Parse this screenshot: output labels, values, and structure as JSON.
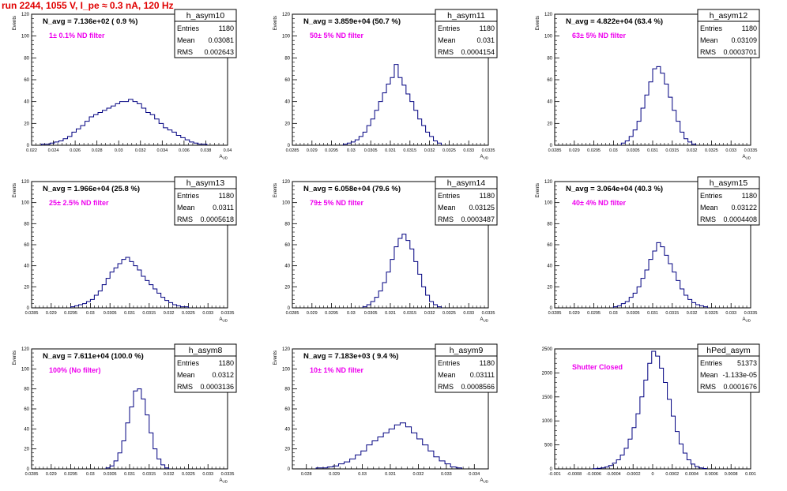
{
  "run_title": "run 2244,  1055 V, I_pe ≈ 0.3 nA, 120 Hz",
  "colors": {
    "title": "#e00000",
    "histogram": "#000080",
    "label": "#ee00ee",
    "text": "#000000"
  },
  "stat_labels": {
    "entries": "Entries",
    "mean": "Mean",
    "rms": "RMS"
  },
  "chart_data": [
    {
      "type": "bar",
      "name": "h_asym10",
      "ylabel": "Events",
      "xlabel": "A_UD",
      "xlim": [
        0.022,
        0.04
      ],
      "ylim": [
        0,
        120
      ],
      "xticks": [
        "0.022",
        "0.024",
        "0.026",
        "0.028",
        "0.03",
        "0.032",
        "0.034",
        "0.036",
        "0.038",
        "0.04"
      ],
      "yticks": [
        "0",
        "20",
        "40",
        "60",
        "80",
        "100",
        "120"
      ],
      "navg": "N_avg = 7.136e+02 ( 0.9 %)",
      "filter": "1± 0.1% ND filter",
      "stats": {
        "entries": "1180",
        "mean": "0.03081",
        "rms": "0.002643"
      },
      "x": [
        0.0231,
        0.0235,
        0.0239,
        0.0243,
        0.0247,
        0.0251,
        0.0255,
        0.0259,
        0.0263,
        0.0267,
        0.0271,
        0.0275,
        0.0279,
        0.0283,
        0.0287,
        0.0291,
        0.0295,
        0.0299,
        0.0303,
        0.0307,
        0.0311,
        0.0315,
        0.0319,
        0.0323,
        0.0327,
        0.0331,
        0.0335,
        0.0339,
        0.0343,
        0.0347,
        0.0351,
        0.0355,
        0.0359,
        0.0363,
        0.0367,
        0.0371,
        0.0375,
        0.0379
      ],
      "values": [
        1,
        1,
        2,
        3,
        4,
        6,
        8,
        12,
        15,
        18,
        22,
        26,
        28,
        30,
        32,
        34,
        36,
        38,
        40,
        40,
        42,
        40,
        38,
        34,
        30,
        28,
        24,
        20,
        16,
        14,
        12,
        9,
        7,
        5,
        3,
        2,
        1,
        1
      ]
    },
    {
      "type": "bar",
      "name": "h_asym11",
      "ylabel": "Events",
      "xlabel": "A_UD",
      "xlim": [
        0.0285,
        0.0335
      ],
      "ylim": [
        0,
        120
      ],
      "xticks": [
        "0.0285",
        "0.029",
        "0.0295",
        "0.03",
        "0.0305",
        "0.031",
        "0.0315",
        "0.032",
        "0.0325",
        "0.033",
        "0.0335"
      ],
      "yticks": [
        "0",
        "20",
        "40",
        "60",
        "80",
        "100",
        "120"
      ],
      "navg": "N_avg = 3.859e+04 (50.7 %)",
      "filter": "50± 5% ND filter",
      "stats": {
        "entries": "1180",
        "mean": "0.031",
        "rms": "0.0004154"
      },
      "x": [
        0.02985,
        0.02995,
        0.03005,
        0.03015,
        0.03025,
        0.03035,
        0.03045,
        0.03055,
        0.03065,
        0.03075,
        0.03085,
        0.03095,
        0.03105,
        0.03115,
        0.03125,
        0.03135,
        0.03145,
        0.03155,
        0.03165,
        0.03175,
        0.03185,
        0.03195,
        0.03205,
        0.03215,
        0.03225
      ],
      "values": [
        1,
        2,
        3,
        5,
        8,
        12,
        18,
        24,
        32,
        40,
        48,
        56,
        62,
        74,
        62,
        55,
        47,
        40,
        32,
        24,
        18,
        12,
        8,
        4,
        2
      ]
    },
    {
      "type": "bar",
      "name": "h_asym12",
      "ylabel": "Events",
      "xlabel": "A_UD",
      "xlim": [
        0.0285,
        0.0335
      ],
      "ylim": [
        0,
        120
      ],
      "xticks": [
        "0.0285",
        "0.029",
        "0.0295",
        "0.03",
        "0.0305",
        "0.031",
        "0.0315",
        "0.032",
        "0.0325",
        "0.033",
        "0.0335"
      ],
      "yticks": [
        "0",
        "20",
        "40",
        "60",
        "80",
        "100",
        "120"
      ],
      "navg": "N_avg = 4.822e+04 (63.4 %)",
      "filter": "63± 5% ND filter",
      "stats": {
        "entries": "1180",
        "mean": "0.03109",
        "rms": "0.0003701"
      },
      "x": [
        0.03025,
        0.03035,
        0.03045,
        0.03055,
        0.03065,
        0.03075,
        0.03085,
        0.03095,
        0.03105,
        0.03115,
        0.03125,
        0.03135,
        0.03145,
        0.03155,
        0.03165,
        0.03175,
        0.03185,
        0.03195,
        0.03205
      ],
      "values": [
        2,
        4,
        8,
        14,
        22,
        34,
        46,
        58,
        70,
        72,
        66,
        56,
        44,
        32,
        22,
        12,
        6,
        3,
        1
      ]
    },
    {
      "type": "bar",
      "name": "h_asym13",
      "ylabel": "Events",
      "xlabel": "A_UD",
      "xlim": [
        0.0285,
        0.0335
      ],
      "ylim": [
        0,
        120
      ],
      "xticks": [
        "0.0285",
        "0.029",
        "0.0295",
        "0.03",
        "0.0305",
        "0.031",
        "0.0315",
        "0.032",
        "0.0325",
        "0.033",
        "0.0335"
      ],
      "yticks": [
        "0",
        "20",
        "40",
        "60",
        "80",
        "100",
        "120"
      ],
      "navg": "N_avg = 1.966e+04 (25.8 %)",
      "filter": "25± 2.5% ND filter",
      "stats": {
        "entries": "1180",
        "mean": "0.0311",
        "rms": "0.0005618"
      },
      "x": [
        0.02955,
        0.02965,
        0.02975,
        0.02985,
        0.02995,
        0.03005,
        0.03015,
        0.03025,
        0.03035,
        0.03045,
        0.03055,
        0.03065,
        0.03075,
        0.03085,
        0.03095,
        0.03105,
        0.03115,
        0.03125,
        0.03135,
        0.03145,
        0.03155,
        0.03165,
        0.03175,
        0.03185,
        0.03195,
        0.03205,
        0.03215,
        0.03225,
        0.03235,
        0.03245
      ],
      "values": [
        1,
        2,
        3,
        4,
        6,
        8,
        12,
        16,
        22,
        28,
        34,
        38,
        42,
        46,
        48,
        44,
        40,
        36,
        30,
        26,
        22,
        18,
        14,
        10,
        7,
        5,
        3,
        2,
        1,
        1
      ]
    },
    {
      "type": "bar",
      "name": "h_asym14",
      "ylabel": "Events",
      "xlabel": "A_UD",
      "xlim": [
        0.0285,
        0.0335
      ],
      "ylim": [
        0,
        120
      ],
      "xticks": [
        "0.0285",
        "0.029",
        "0.0295",
        "0.03",
        "0.0305",
        "0.031",
        "0.0315",
        "0.032",
        "0.0325",
        "0.033",
        "0.0335"
      ],
      "yticks": [
        "0",
        "20",
        "40",
        "60",
        "80",
        "100",
        "120"
      ],
      "navg": "N_avg = 6.058e+04 (79.6 %)",
      "filter": "79± 5% ND filter",
      "stats": {
        "entries": "1180",
        "mean": "0.03125",
        "rms": "0.0003487"
      },
      "x": [
        0.03035,
        0.03045,
        0.03055,
        0.03065,
        0.03075,
        0.03085,
        0.03095,
        0.03105,
        0.03115,
        0.03125,
        0.03135,
        0.03145,
        0.03155,
        0.03165,
        0.03175,
        0.03185,
        0.03195,
        0.03205,
        0.03215,
        0.03225
      ],
      "values": [
        1,
        3,
        6,
        10,
        16,
        24,
        34,
        46,
        58,
        66,
        70,
        64,
        56,
        44,
        32,
        20,
        12,
        6,
        3,
        1
      ]
    },
    {
      "type": "bar",
      "name": "h_asym15",
      "ylabel": "Events",
      "xlabel": "A_UD",
      "xlim": [
        0.0285,
        0.0335
      ],
      "ylim": [
        0,
        120
      ],
      "xticks": [
        "0.0285",
        "0.029",
        "0.0295",
        "0.03",
        "0.0305",
        "0.031",
        "0.0315",
        "0.032",
        "0.0325",
        "0.033",
        "0.0335"
      ],
      "yticks": [
        "0",
        "20",
        "40",
        "60",
        "80",
        "100",
        "120"
      ],
      "navg": "N_avg = 3.064e+04 (40.3 %)",
      "filter": "40± 4% ND filter",
      "stats": {
        "entries": "1180",
        "mean": "0.03122",
        "rms": "0.0004408"
      },
      "x": [
        0.03005,
        0.03015,
        0.03025,
        0.03035,
        0.03045,
        0.03055,
        0.03065,
        0.03075,
        0.03085,
        0.03095,
        0.03105,
        0.03115,
        0.03125,
        0.03135,
        0.03145,
        0.03155,
        0.03165,
        0.03175,
        0.03185,
        0.03195,
        0.03205,
        0.03215,
        0.03225,
        0.03235
      ],
      "values": [
        1,
        2,
        4,
        6,
        10,
        14,
        20,
        28,
        36,
        46,
        54,
        62,
        58,
        50,
        42,
        34,
        26,
        18,
        12,
        8,
        5,
        3,
        2,
        1
      ]
    },
    {
      "type": "bar",
      "name": "h_asym8",
      "ylabel": "Events",
      "xlabel": "A_UD",
      "xlim": [
        0.0285,
        0.0335
      ],
      "ylim": [
        0,
        120
      ],
      "xticks": [
        "0.0285",
        "0.029",
        "0.0295",
        "0.03",
        "0.0305",
        "0.031",
        "0.0315",
        "0.032",
        "0.0325",
        "0.033",
        "0.0335"
      ],
      "yticks": [
        "0",
        "20",
        "40",
        "60",
        "80",
        "100",
        "120"
      ],
      "navg": "N_avg = 7.611e+04 (100.0 %)",
      "filter": "100% (No filter)",
      "stats": {
        "entries": "1180",
        "mean": "0.0312",
        "rms": "0.0003136"
      },
      "x": [
        0.03045,
        0.03055,
        0.03065,
        0.03075,
        0.03085,
        0.03095,
        0.03105,
        0.03115,
        0.03125,
        0.03135,
        0.03145,
        0.03155,
        0.03165,
        0.03175,
        0.03185,
        0.03195
      ],
      "values": [
        1,
        3,
        8,
        16,
        28,
        46,
        62,
        78,
        80,
        70,
        54,
        36,
        20,
        10,
        4,
        1
      ]
    },
    {
      "type": "bar",
      "name": "h_asym9",
      "ylabel": "Events",
      "xlabel": "A_UD",
      "xlim": [
        0.0275,
        0.0345
      ],
      "ylim": [
        0,
        120
      ],
      "xticks": [
        "0.028",
        "0.029",
        "0.03",
        "0.031",
        "0.032",
        "0.033",
        "0.034"
      ],
      "yticks": [
        "0",
        "20",
        "40",
        "60",
        "80",
        "100",
        "120"
      ],
      "navg": "N_avg = 7.183e+03 ( 9.4 %)",
      "filter": "10± 1% ND filter",
      "stats": {
        "entries": "1180",
        "mean": "0.03111",
        "rms": "0.0008566"
      },
      "x": [
        0.02845,
        0.02865,
        0.02885,
        0.02905,
        0.02925,
        0.02945,
        0.02965,
        0.02985,
        0.03005,
        0.03025,
        0.03045,
        0.03065,
        0.03085,
        0.03105,
        0.03125,
        0.03145,
        0.03165,
        0.03185,
        0.03205,
        0.03225,
        0.03245,
        0.03265,
        0.03285,
        0.03305,
        0.03325,
        0.03345
      ],
      "values": [
        1,
        1,
        2,
        3,
        5,
        7,
        10,
        14,
        18,
        24,
        28,
        32,
        36,
        40,
        44,
        46,
        42,
        36,
        30,
        24,
        18,
        12,
        8,
        5,
        2,
        1
      ]
    },
    {
      "type": "bar",
      "name": "hPed_asym",
      "ylabel": "",
      "xlabel": "",
      "xlim": [
        -0.001,
        0.001
      ],
      "ylim": [
        0,
        2500
      ],
      "xticks": [
        "-0.001",
        "-0.0008",
        "-0.0006",
        "-0.0004",
        "-0.0002",
        "0",
        "0.0002",
        "0.0004",
        "0.0006",
        "0.0008",
        "0.001"
      ],
      "yticks": [
        "0",
        "500",
        "1000",
        "1500",
        "2000",
        "2500"
      ],
      "navg": "",
      "filter": "Shutter Closed",
      "stats": {
        "entries": "51373",
        "mean": "-1.133e-05",
        "rms": "0.0001676"
      },
      "x": [
        -0.00059,
        -0.00055,
        -0.00051,
        -0.00047,
        -0.00043,
        -0.00039,
        -0.00035,
        -0.00031,
        -0.00027,
        -0.00023,
        -0.00019,
        -0.00015,
        -0.00011,
        -7e-05,
        -3e-05,
        1e-05,
        5e-05,
        9e-05,
        0.00013,
        0.00017,
        0.00021,
        0.00025,
        0.00029,
        0.00033,
        0.00037,
        0.00041,
        0.00045,
        0.00049,
        0.00053
      ],
      "values": [
        4,
        10,
        20,
        40,
        70,
        120,
        190,
        290,
        430,
        620,
        860,
        1150,
        1500,
        1850,
        2200,
        2450,
        2350,
        2100,
        1800,
        1450,
        1100,
        780,
        520,
        330,
        190,
        100,
        50,
        20,
        8
      ]
    }
  ]
}
